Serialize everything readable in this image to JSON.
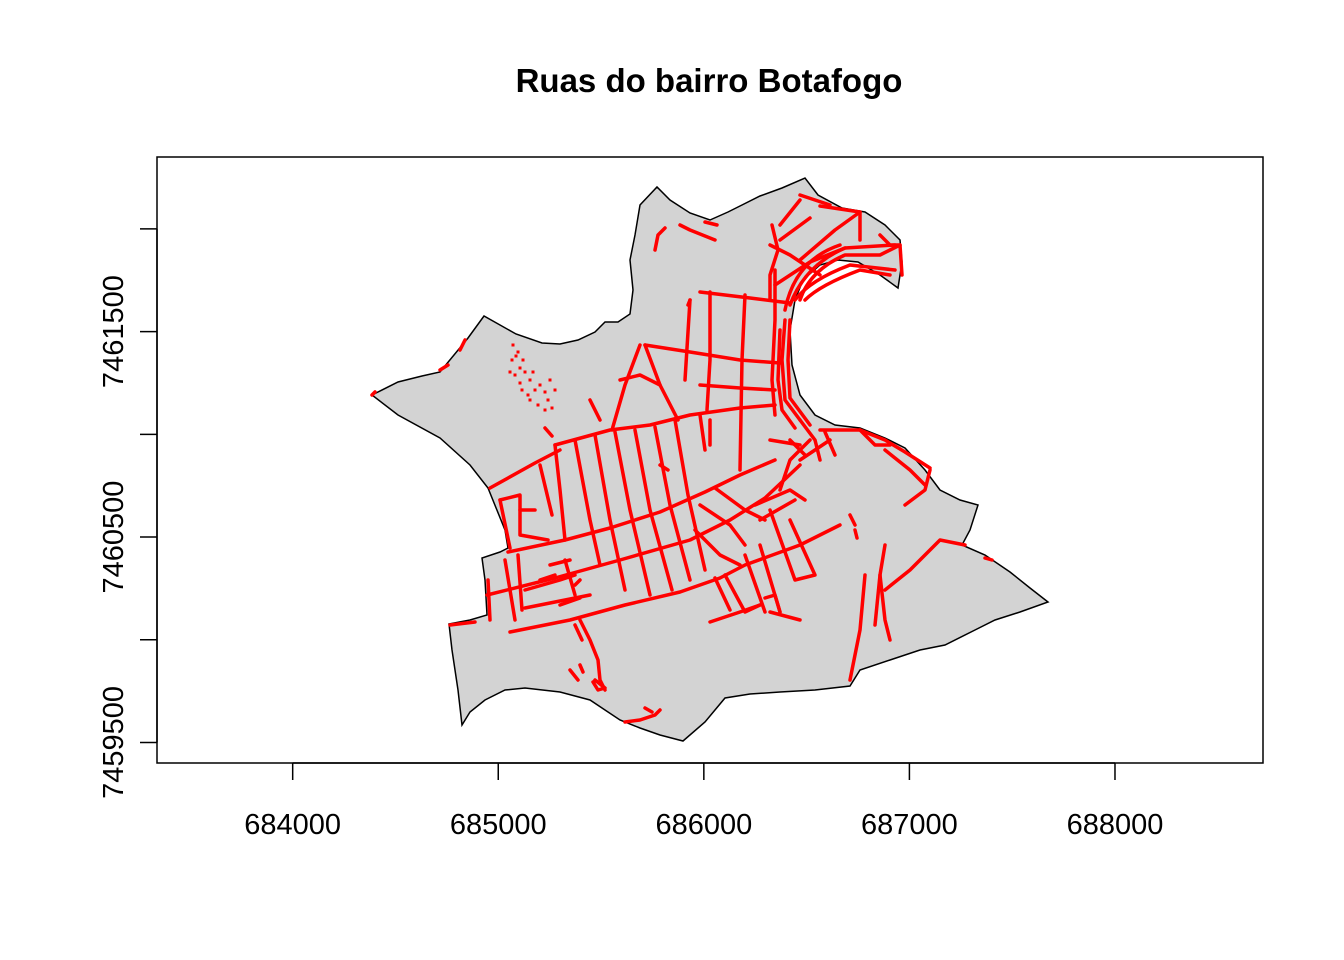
{
  "chart_data": {
    "type": "map",
    "title": "Ruas do bairro Botafogo",
    "xlabel": "",
    "ylabel": "",
    "x_ticks": [
      684000,
      685000,
      686000,
      687000,
      688000
    ],
    "y_ticks": [
      7459500,
      7460000,
      7460500,
      7461000,
      7461500,
      7462000
    ],
    "y_tick_labels": [
      "7459500",
      "",
      "7460500",
      "",
      "7461500",
      ""
    ],
    "xlim": [
      683340,
      688720
    ],
    "ylim": [
      7459400,
      7462350
    ],
    "grid": false,
    "legend": "none",
    "colors": {
      "neighborhood_fill": "#d3d3d3",
      "neighborhood_border": "#000000",
      "streets": "#ff0000"
    },
    "layers": [
      {
        "name": "bairro",
        "kind": "polygon"
      },
      {
        "name": "ruas",
        "kind": "lines"
      }
    ]
  }
}
